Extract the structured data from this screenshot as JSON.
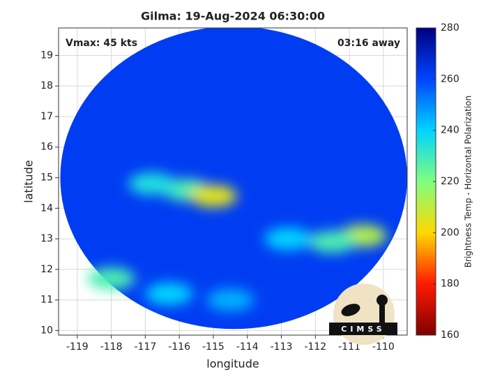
{
  "chart_data": {
    "type": "swath",
    "title": "Gilma: 19-Aug-2024 06:30:00",
    "x_label": "longitude",
    "y_label": "latitude",
    "annotations": [
      "Vmax: 45 kts",
      "03:16 away"
    ],
    "logo_text": "CIMSS",
    "xlim": [
      -119.55,
      -109.3
    ],
    "xticks": [
      -119,
      -118,
      -117,
      -116,
      -115,
      -114,
      -113,
      -112,
      -111,
      -110
    ],
    "ylim": [
      9.85,
      19.9
    ],
    "yticks": [
      10,
      11,
      12,
      13,
      14,
      15,
      16,
      17,
      18,
      19
    ],
    "grid": true,
    "colorbar": {
      "label": "Brightness Temp - Horizontal Polarization",
      "clim": [
        160,
        280
      ],
      "ticks": [
        160,
        180,
        200,
        220,
        240,
        260,
        280
      ],
      "colormap": [
        "#800000",
        "#ff1a00",
        "#ffd800",
        "#7fff7f",
        "#00d4ff",
        "#0044ff",
        "#000080"
      ]
    },
    "swath": {
      "center_lon": -114.4,
      "center_lat": 15.0,
      "radius_lon": 5.1,
      "radius_lat": 4.95,
      "background_temp": 262
    },
    "cells": [
      {
        "lon": -115.8,
        "lat": 14.6,
        "temp": 228
      },
      {
        "lon": -115.0,
        "lat": 14.4,
        "temp": 205
      },
      {
        "lon": -116.8,
        "lat": 14.8,
        "temp": 235
      },
      {
        "lon": -110.6,
        "lat": 13.1,
        "temp": 212
      },
      {
        "lon": -111.5,
        "lat": 12.9,
        "temp": 228
      },
      {
        "lon": -112.8,
        "lat": 13.0,
        "temp": 240
      },
      {
        "lon": -118.0,
        "lat": 11.7,
        "temp": 228
      },
      {
        "lon": -116.3,
        "lat": 11.2,
        "temp": 240
      },
      {
        "lon": -114.5,
        "lat": 11.0,
        "temp": 245
      }
    ]
  }
}
